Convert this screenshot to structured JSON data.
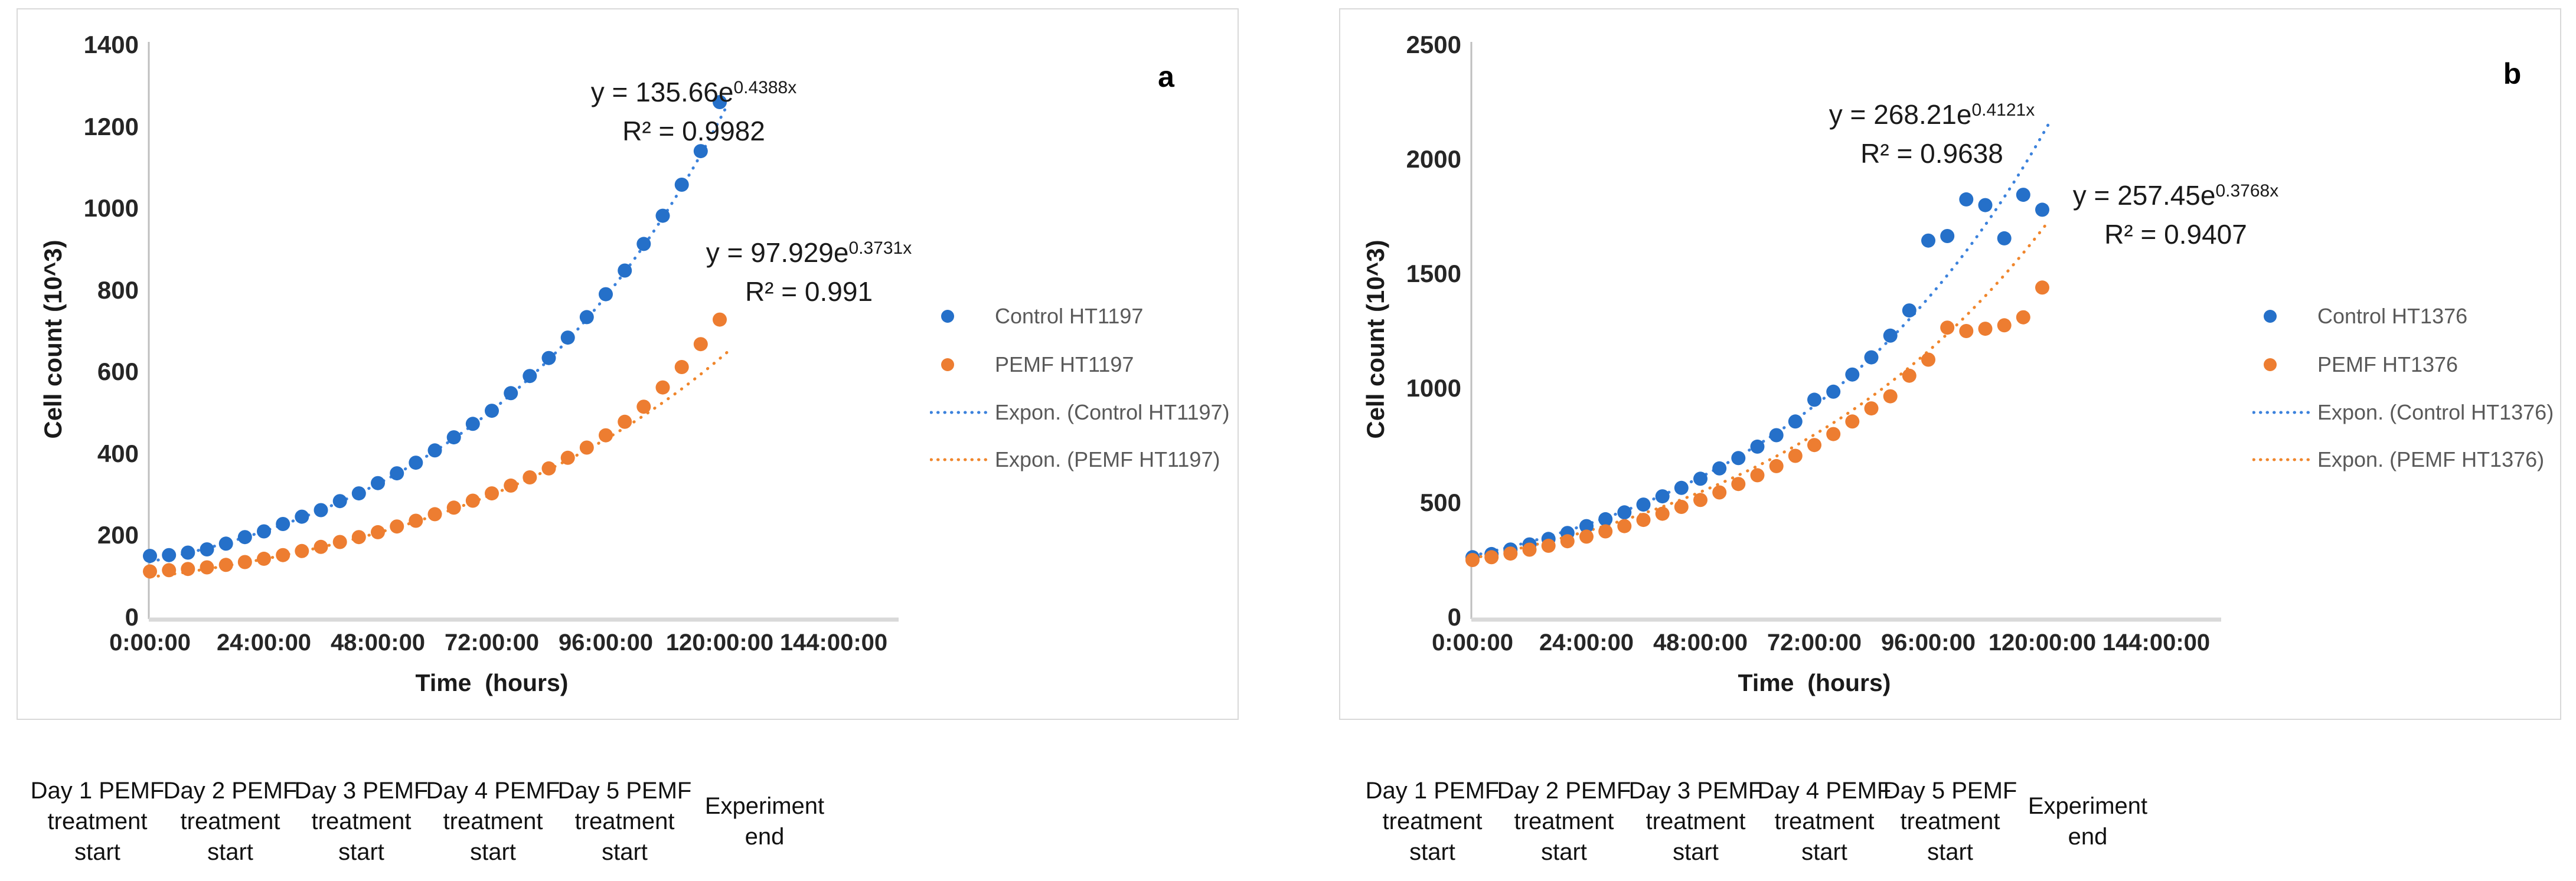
{
  "colors": {
    "control": "#2570C9",
    "pemf": "#ED7D31",
    "trend_control": "#3C82DC",
    "trend_pemf": "#F0862C",
    "axis_line": "#BFBFBF",
    "baseline": "#D9D9D9",
    "tick_text": "#262626",
    "legend_text": "#595959"
  },
  "timeline": {
    "entries": [
      {
        "lines": [
          "Day 1 PEMF",
          "treatment",
          "start"
        ]
      },
      {
        "lines": [
          "Day 2 PEMF",
          "treatment",
          "start"
        ]
      },
      {
        "lines": [
          "Day 3 PEMF",
          "treatment",
          "start"
        ]
      },
      {
        "lines": [
          "Day 4 PEMF",
          "treatment",
          "start"
        ]
      },
      {
        "lines": [
          "Day 5 PEMF",
          "treatment",
          "start"
        ]
      },
      {
        "lines": [
          "Experiment",
          "end"
        ]
      }
    ]
  },
  "chart_data": [
    {
      "type": "scatter",
      "panel_label": "a",
      "xlabel": "Time  (hours)",
      "ylabel": "Cell count (10^3)",
      "ylim": [
        0,
        1400
      ],
      "y_ticks": [
        0,
        200,
        400,
        600,
        800,
        1000,
        1200,
        1400
      ],
      "x_ticks": [
        "0:00:00",
        "24:00:00",
        "48:00:00",
        "72:00:00",
        "96:00:00",
        "120:00:00",
        "144:00:00"
      ],
      "x_tick_hours": [
        0,
        24,
        48,
        72,
        96,
        120,
        144
      ],
      "grid": false,
      "legend_position": "right",
      "series": [
        {
          "name": "Control HT1197",
          "color_key": "control",
          "x_hours": [
            0,
            4,
            8,
            12,
            16,
            20,
            24,
            28,
            32,
            36,
            40,
            44,
            48,
            52,
            56,
            60,
            64,
            68,
            72,
            76,
            80,
            84,
            88,
            92,
            96,
            100,
            104,
            108,
            112,
            116,
            120
          ],
          "values": [
            150,
            152,
            158,
            166,
            180,
            196,
            210,
            228,
            246,
            262,
            284,
            303,
            328,
            352,
            378,
            408,
            440,
            473,
            505,
            548,
            590,
            634,
            684,
            734,
            790,
            848,
            913,
            982,
            1058,
            1140,
            1260
          ]
        },
        {
          "name": "PEMF HT1197",
          "color_key": "pemf",
          "x_hours": [
            0,
            4,
            8,
            12,
            16,
            20,
            24,
            28,
            32,
            36,
            40,
            44,
            48,
            52,
            56,
            60,
            64,
            68,
            72,
            76,
            80,
            84,
            88,
            92,
            96,
            100,
            104,
            108,
            112,
            116,
            120
          ],
          "values": [
            112,
            115,
            118,
            122,
            128,
            135,
            143,
            152,
            162,
            172,
            184,
            196,
            208,
            222,
            236,
            252,
            268,
            285,
            303,
            322,
            342,
            364,
            390,
            415,
            445,
            478,
            515,
            562,
            612,
            668,
            728
          ]
        }
      ],
      "trendlines": [
        {
          "name": "Expon. (Control HT1197)",
          "color_key": "trend_control",
          "base": 135.66,
          "rate_per_day": 0.4388,
          "eq_base": "y = 135.66e",
          "eq_exp": "0.4388x",
          "r2": "R² = 0.9982",
          "x_end_hours": 122.5
        },
        {
          "name": "Expon. (PEMF HT1197)",
          "color_key": "trend_pemf",
          "base": 97.929,
          "rate_per_day": 0.3731,
          "eq_base": "y = 97.929e",
          "eq_exp": "0.3731x",
          "r2": "R² = 0.991",
          "x_end_hours": 122.5
        }
      ],
      "legend": [
        {
          "label": "Control HT1197",
          "marker": "dot",
          "color_key": "control"
        },
        {
          "label": "PEMF HT1197",
          "marker": "dot",
          "color_key": "pemf"
        },
        {
          "label": "Expon. (Control HT1197)",
          "marker": "dotted-line",
          "color_key": "trend_control"
        },
        {
          "label": "Expon. (PEMF HT1197)",
          "marker": "dotted-line",
          "color_key": "trend_pemf"
        }
      ]
    },
    {
      "type": "scatter",
      "panel_label": "b",
      "xlabel": "Time  (hours)",
      "ylabel": "Cell count (10^3)",
      "ylim": [
        0,
        2500
      ],
      "y_ticks": [
        0,
        500,
        1000,
        1500,
        2000,
        2500
      ],
      "x_ticks": [
        "0:00:00",
        "24:00:00",
        "48:00:00",
        "72:00:00",
        "96:00:00",
        "120:00:00",
        "144:00:00"
      ],
      "x_tick_hours": [
        0,
        24,
        48,
        72,
        96,
        120,
        144
      ],
      "grid": false,
      "legend_position": "right",
      "series": [
        {
          "name": "Control HT1376",
          "color_key": "control",
          "x_hours": [
            0,
            4,
            8,
            12,
            16,
            20,
            24,
            28,
            32,
            36,
            40,
            44,
            48,
            52,
            56,
            60,
            64,
            68,
            72,
            76,
            80,
            84,
            88,
            92,
            96,
            100,
            104,
            108,
            112,
            116,
            120
          ],
          "values": [
            262,
            276,
            296,
            318,
            342,
            368,
            398,
            428,
            458,
            492,
            528,
            565,
            605,
            650,
            695,
            745,
            795,
            855,
            950,
            985,
            1060,
            1135,
            1230,
            1340,
            1645,
            1665,
            1825,
            1800,
            1655,
            1845,
            1780
          ]
        },
        {
          "name": "PEMF HT1376",
          "color_key": "pemf",
          "x_hours": [
            0,
            4,
            8,
            12,
            16,
            20,
            24,
            28,
            32,
            36,
            40,
            44,
            48,
            52,
            56,
            60,
            64,
            68,
            72,
            76,
            80,
            84,
            88,
            92,
            96,
            100,
            104,
            108,
            112,
            116,
            120
          ],
          "values": [
            250,
            262,
            278,
            295,
            312,
            332,
            352,
            375,
            398,
            425,
            452,
            482,
            512,
            545,
            582,
            620,
            660,
            705,
            752,
            800,
            855,
            912,
            965,
            1055,
            1125,
            1265,
            1250,
            1260,
            1275,
            1310,
            1440
          ]
        }
      ],
      "trendlines": [
        {
          "name": "Expon. (Control HT1376)",
          "color_key": "trend_control",
          "base": 268.21,
          "rate_per_day": 0.4121,
          "eq_base": "y = 268.21e",
          "eq_exp": "0.4121x",
          "r2": "R² = 0.9638",
          "x_end_hours": 122.5
        },
        {
          "name": "Expon. (PEMF HT1376)",
          "color_key": "trend_pemf",
          "base": 257.45,
          "rate_per_day": 0.3768,
          "eq_base": "y = 257.45e",
          "eq_exp": "0.3768x",
          "r2": "R² = 0.9407",
          "x_end_hours": 122.5
        }
      ],
      "legend": [
        {
          "label": "Control HT1376",
          "marker": "dot",
          "color_key": "control"
        },
        {
          "label": "PEMF HT1376",
          "marker": "dot",
          "color_key": "pemf"
        },
        {
          "label": "Expon. (Control HT1376)",
          "marker": "dotted-line",
          "color_key": "trend_control"
        },
        {
          "label": "Expon. (PEMF HT1376)",
          "marker": "dotted-line",
          "color_key": "trend_pemf"
        }
      ]
    }
  ]
}
